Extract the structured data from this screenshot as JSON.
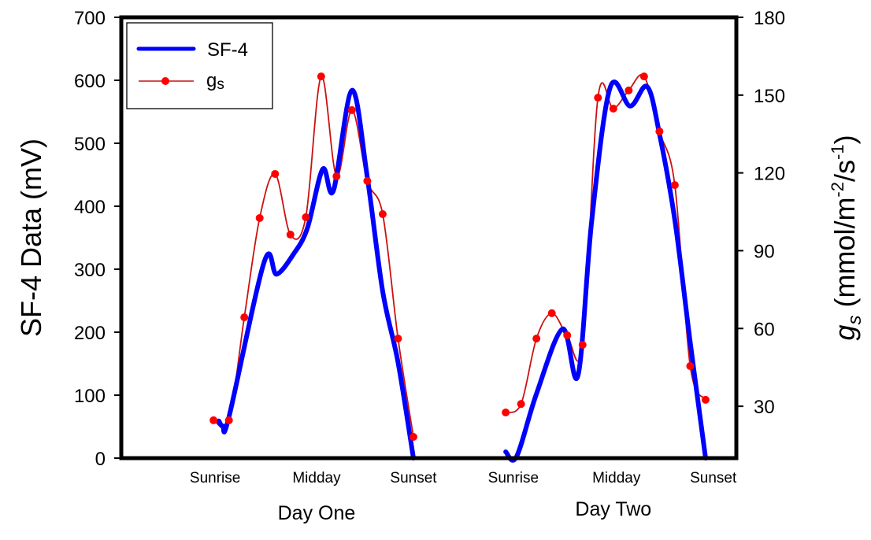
{
  "chart_data": {
    "type": "line",
    "title": "",
    "ylabel": "SF-4 Data (mV)",
    "y2label_main": "g",
    "y2label_sub": "s",
    "y2label_units": " (mmol/m",
    "y2label_exp1": "-2",
    "y2label_mid": "/s",
    "y2label_exp2": "-1",
    "y2label_close": ")",
    "ylim": [
      0,
      700
    ],
    "y2lim": [
      10,
      180
    ],
    "xlim": [
      -6,
      34
    ],
    "grid": false,
    "legend_position": "top-left",
    "yticks": [
      0,
      100,
      200,
      300,
      400,
      500,
      600,
      700
    ],
    "y2ticks": [
      30,
      60,
      90,
      120,
      150,
      180
    ],
    "xcategories": [
      {
        "label": "Sunrise",
        "x": 0.1
      },
      {
        "label": "Midday",
        "x": 6.7
      },
      {
        "label": "Sunset",
        "x": 13.0
      },
      {
        "label": "Sunrise",
        "x": 19.5
      },
      {
        "label": "Midday",
        "x": 26.2
      },
      {
        "label": "Sunset",
        "x": 32.5
      }
    ],
    "groups": [
      {
        "label": "Day One",
        "x": 6.7
      },
      {
        "label": "Day Two",
        "x": 26.0
      }
    ],
    "series": [
      {
        "name": "SF-4",
        "axis": "left",
        "color": "#0000ff",
        "markers": false,
        "segments": [
          {
            "x": [
              0.35,
              0.6,
              1.0,
              3.3,
              4.1,
              5.2,
              6.1,
              7.1,
              7.8,
              9.0,
              10.0,
              11.0,
              12.0,
              13.0
            ],
            "y": [
              59,
              51,
              65,
              312,
              292,
              324,
              365,
              459,
              425,
              584,
              446,
              265,
              152,
              0
            ]
          },
          {
            "x": [
              19.0,
              19.7,
              21.0,
              22.7,
              23.7,
              24.6,
              25.8,
              27.1,
              28.2,
              29.0,
              30.0,
              31.0,
              32.0
            ],
            "y": [
              10,
              2,
              102,
              205,
              131,
              378,
              589,
              559,
              590,
              515,
              378,
              184,
              0
            ]
          }
        ]
      },
      {
        "name": "gs",
        "name_main": "g",
        "name_sub": "s",
        "axis": "right",
        "color": "#ff0000",
        "line_color": "#cc1111",
        "markers": true,
        "segments": [
          {
            "x": [
              0,
              1,
              2,
              3,
              4,
              5,
              6,
              7,
              8,
              9,
              10,
              11,
              12,
              13
            ],
            "y": [
              24.6,
              24.6,
              64.3,
              102.6,
              119.6,
              96.2,
              102.9,
              157.2,
              118.7,
              144.2,
              116.9,
              104.1,
              56.1,
              18.2
            ]
          },
          {
            "x": [
              19,
              20,
              21,
              22,
              23,
              24,
              25,
              26,
              27,
              28,
              29,
              30,
              31,
              32
            ],
            "y": [
              27.6,
              30.9,
              56.1,
              65.9,
              57.4,
              53.7,
              149.0,
              144.8,
              151.8,
              157.2,
              136.0,
              115.3,
              45.5,
              32.5
            ]
          }
        ]
      }
    ]
  }
}
